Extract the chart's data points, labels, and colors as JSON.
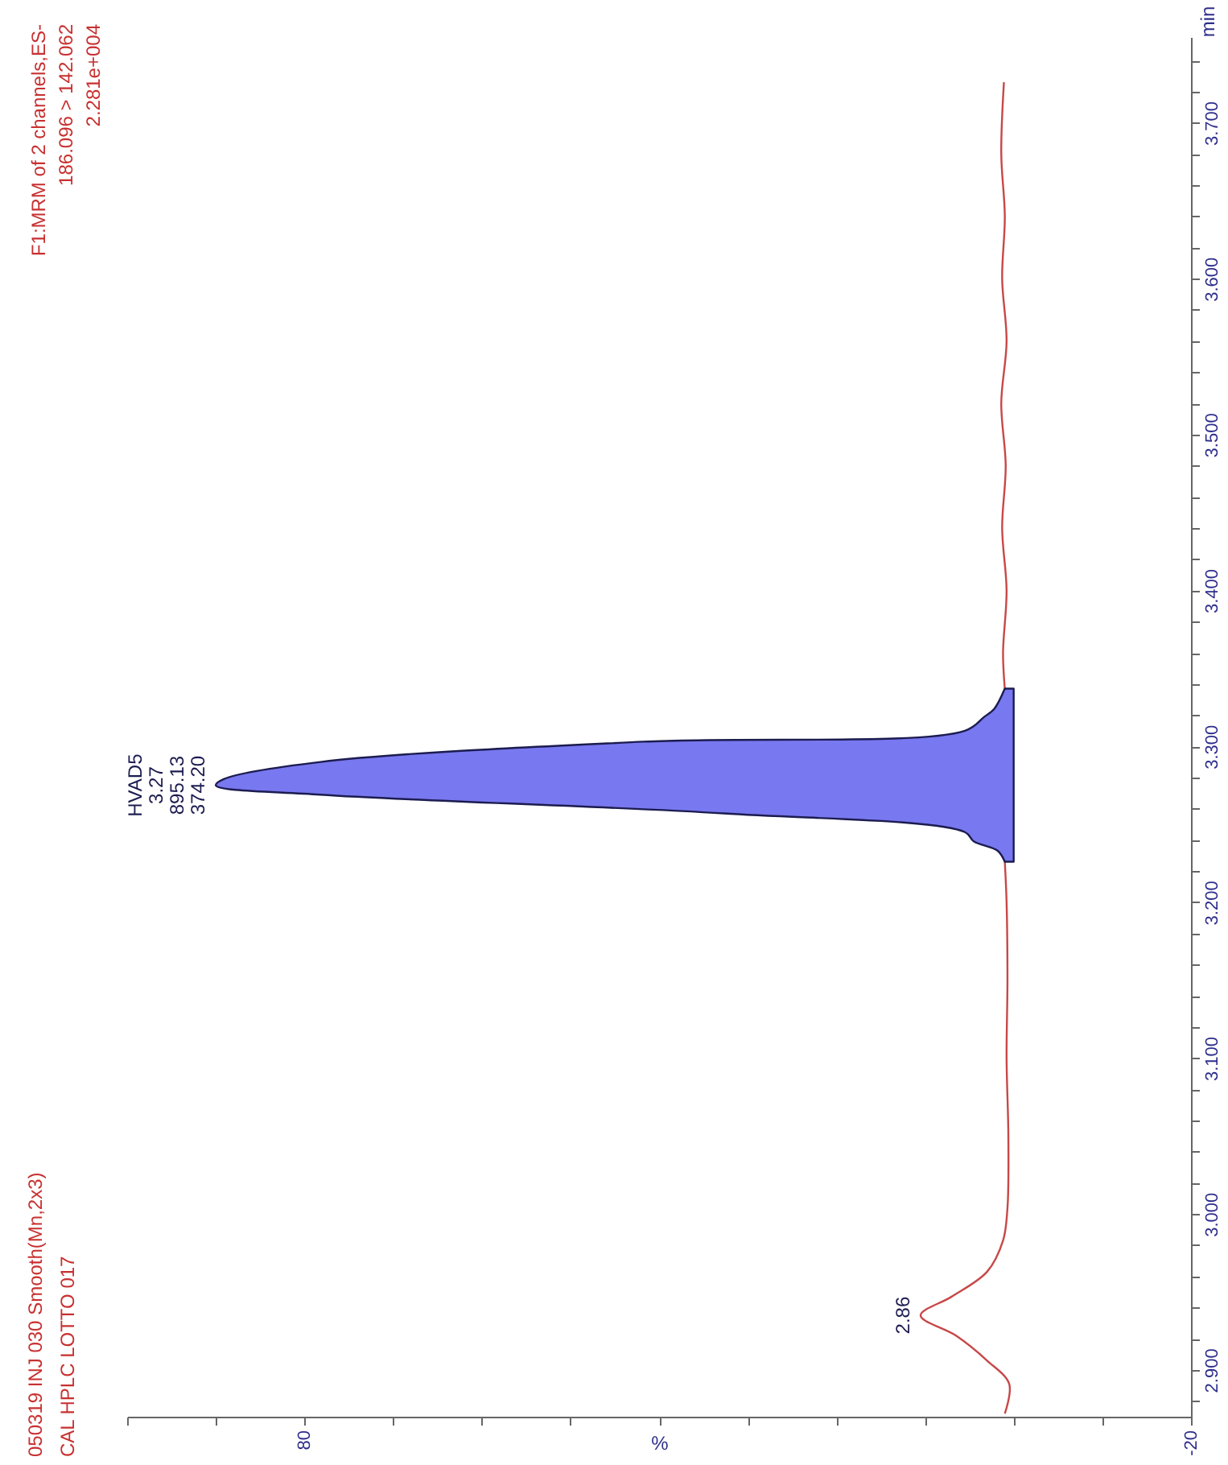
{
  "chart_data": {
    "type": "line",
    "title": "050319 INJ 030 Smooth(Mn,2x3)",
    "subtitle": "CAL HPLC LOTTO 017",
    "xlabel": "%",
    "ylabel": "min",
    "series": [
      {
        "color": "#c84848",
        "values": [
          1.0,
          0.5,
          3,
          6.5,
          10.5,
          7,
          3,
          1.2,
          0.7,
          0.6,
          0.8,
          0.7,
          0.8,
          1.0,
          null,
          1.0,
          1.2,
          0.8,
          1.3,
          0.9,
          1.4,
          0.8,
          1.3,
          1.0,
          1.4,
          1.1
        ],
        "x": [
          2.872,
          2.891,
          2.906,
          2.922,
          2.935,
          2.947,
          2.963,
          2.983,
          3.004,
          3.05,
          3.1,
          3.15,
          3.2,
          3.226,
          3.28,
          3.337,
          3.36,
          3.4,
          3.44,
          3.48,
          3.52,
          3.56,
          3.6,
          3.64,
          3.68,
          3.726
        ]
      },
      {
        "type": "area",
        "color": "#7878f0",
        "values": [
          1.0,
          1.8,
          4.5,
          5.5,
          32.7,
          78.2,
          90,
          89.1,
          78.2,
          41.8,
          5.5,
          3.3,
          2.2,
          1.0
        ],
        "x": [
          3.226,
          3.233,
          3.239,
          3.245,
          3.257,
          3.269,
          3.275,
          3.279,
          3.29,
          3.303,
          3.31,
          3.319,
          3.324,
          3.337
        ]
      }
    ],
    "orientation": "horizontal",
    "xlim": [
      100,
      -20
    ],
    "xticks": [
      {
        "value": 100,
        "label": null
      },
      {
        "value": 90,
        "label": null
      },
      80,
      {
        "value": 70,
        "label": null
      },
      {
        "value": 60,
        "label": null
      },
      {
        "value": 50,
        "label": null
      },
      {
        "value": 40,
        "label": null
      },
      {
        "value": 30,
        "label": null
      },
      {
        "value": 20,
        "label": null
      },
      {
        "value": 10,
        "label": null
      },
      {
        "value": 0,
        "label": null
      },
      {
        "value": -10,
        "label": null
      },
      -20
    ],
    "ylim": [
      2.87,
      3.755
    ],
    "yticks": [
      {
        "value": 2.88,
        "label": null
      },
      {
        "value": 2.9,
        "label": "2.900"
      },
      {
        "value": 2.92,
        "label": null
      },
      {
        "value": 2.94,
        "label": null
      },
      {
        "value": 2.96,
        "label": null
      },
      {
        "value": 2.98,
        "label": null
      },
      {
        "value": 3.0,
        "label": "3.000"
      },
      {
        "value": 3.02,
        "label": null
      },
      {
        "value": 3.04,
        "label": null
      },
      {
        "value": 3.06,
        "label": null
      },
      {
        "value": 3.08,
        "label": null
      },
      {
        "value": 3.1,
        "label": "3.100"
      },
      {
        "value": 3.12,
        "label": null
      },
      {
        "value": 3.14,
        "label": null
      },
      {
        "value": 3.16,
        "label": null
      },
      {
        "value": 3.18,
        "label": null
      },
      {
        "value": 3.2,
        "label": "3.200"
      },
      {
        "value": 3.22,
        "label": null
      },
      {
        "value": 3.24,
        "label": null
      },
      {
        "value": 3.26,
        "label": null
      },
      {
        "value": 3.28,
        "label": null
      },
      {
        "value": 3.3,
        "label": "3.300"
      },
      {
        "value": 3.32,
        "label": null
      },
      {
        "value": 3.34,
        "label": null
      },
      {
        "value": 3.36,
        "label": null
      },
      {
        "value": 3.38,
        "label": null
      },
      {
        "value": 3.4,
        "label": "3.400"
      },
      {
        "value": 3.42,
        "label": null
      },
      {
        "value": 3.44,
        "label": null
      },
      {
        "value": 3.46,
        "label": null
      },
      {
        "value": 3.48,
        "label": null
      },
      {
        "value": 3.5,
        "label": "3.500"
      },
      {
        "value": 3.52,
        "label": null
      },
      {
        "value": 3.54,
        "label": null
      },
      {
        "value": 3.56,
        "label": null
      },
      {
        "value": 3.58,
        "label": null
      },
      {
        "value": 3.6,
        "label": "3.600"
      },
      {
        "value": 3.62,
        "label": null
      },
      {
        "value": 3.64,
        "label": null
      },
      {
        "value": 3.66,
        "label": null
      },
      {
        "value": 3.68,
        "label": null
      },
      {
        "value": 3.7,
        "label": "3.700"
      },
      {
        "value": 3.72,
        "label": null
      },
      {
        "value": 3.74,
        "label": null
      }
    ],
    "annotations": [
      "F1:MRM of 2 channels,ES-",
      "186.096 > 142.062",
      "2.281e+004",
      {
        "text": "2.86",
        "x": 10.5,
        "y": 2.935
      },
      {
        "text": "HVAD5\n3.27\n895.13\n374.20",
        "x": 90,
        "y": 3.275
      }
    ],
    "grid": false
  }
}
